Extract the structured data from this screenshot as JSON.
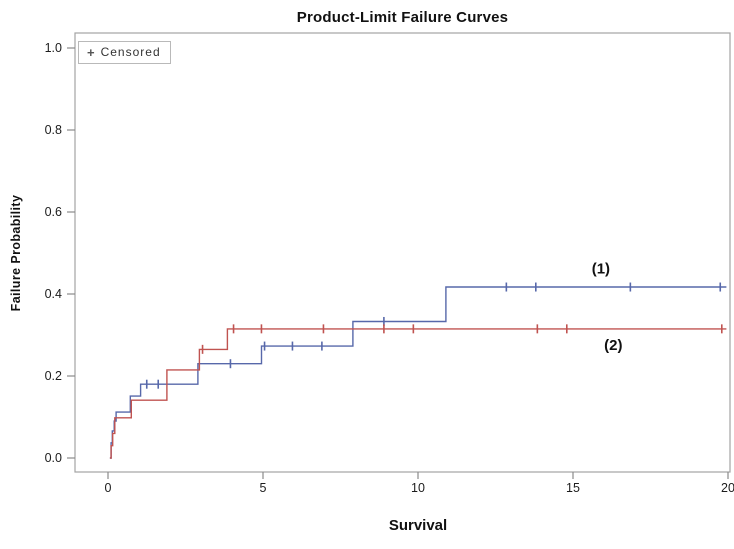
{
  "title": "Product-Limit Failure Curves",
  "legend": {
    "marker": "+",
    "label": "Censored"
  },
  "axes": {
    "x": {
      "label": "Survival",
      "tick_labels": [
        "0",
        "5",
        "10",
        "15",
        "20"
      ],
      "tick_values": [
        0,
        5,
        10,
        15,
        20
      ]
    },
    "y": {
      "label": "Failure Probability",
      "tick_labels": [
        "0.0",
        "0.2",
        "0.4",
        "0.6",
        "0.8",
        "1.0"
      ],
      "tick_values": [
        0,
        0.2,
        0.4,
        0.6,
        0.8,
        1.0
      ]
    }
  },
  "chart_data": {
    "type": "line",
    "subtype": "step-function-failure-curves",
    "title": "Product-Limit Failure Curves",
    "xlabel": "Survival",
    "ylabel": "Failure Probability",
    "xlim": [
      0,
      20
    ],
    "ylim": [
      0,
      1.0
    ],
    "x_ticks": [
      0,
      5,
      10,
      15,
      20
    ],
    "y_ticks": [
      0.0,
      0.2,
      0.4,
      0.6,
      0.8,
      1.0
    ],
    "grid": false,
    "legend_position": "top-left-inside",
    "legend_entry": "+ Censored",
    "series": [
      {
        "name": "(1)",
        "color": "#5768aa",
        "label_pos": {
          "x": 15.9,
          "y": 0.462
        },
        "steps": [
          [
            0.06,
            0.0
          ],
          [
            0.1,
            0.037
          ],
          [
            0.14,
            0.066
          ],
          [
            0.2,
            0.09
          ],
          [
            0.26,
            0.112
          ],
          [
            0.72,
            0.151
          ],
          [
            1.05,
            0.18
          ],
          [
            2.9,
            0.23
          ],
          [
            4.95,
            0.273
          ],
          [
            7.9,
            0.333
          ],
          [
            10.9,
            0.417
          ],
          [
            19.95,
            0.417
          ]
        ],
        "censored": [
          [
            1.25,
            0.18
          ],
          [
            1.62,
            0.18
          ],
          [
            3.95,
            0.23
          ],
          [
            5.05,
            0.273
          ],
          [
            5.95,
            0.273
          ],
          [
            6.9,
            0.273
          ],
          [
            8.9,
            0.333
          ],
          [
            12.85,
            0.417
          ],
          [
            13.8,
            0.417
          ],
          [
            16.85,
            0.417
          ],
          [
            19.75,
            0.417
          ]
        ]
      },
      {
        "name": "(2)",
        "color": "#c05350",
        "label_pos": {
          "x": 16.3,
          "y": 0.276
        },
        "steps": [
          [
            0.06,
            0.0
          ],
          [
            0.1,
            0.03
          ],
          [
            0.15,
            0.06
          ],
          [
            0.22,
            0.098
          ],
          [
            0.75,
            0.141
          ],
          [
            1.9,
            0.215
          ],
          [
            2.95,
            0.265
          ],
          [
            3.85,
            0.315
          ],
          [
            19.95,
            0.315
          ]
        ],
        "censored": [
          [
            3.05,
            0.265
          ],
          [
            4.05,
            0.315
          ],
          [
            4.95,
            0.315
          ],
          [
            6.95,
            0.315
          ],
          [
            8.9,
            0.315
          ],
          [
            9.85,
            0.315
          ],
          [
            13.85,
            0.315
          ],
          [
            14.8,
            0.315
          ],
          [
            19.8,
            0.315
          ]
        ]
      }
    ]
  },
  "frame_color": "#a3a3a3",
  "tick_color": "#8a8a8a"
}
